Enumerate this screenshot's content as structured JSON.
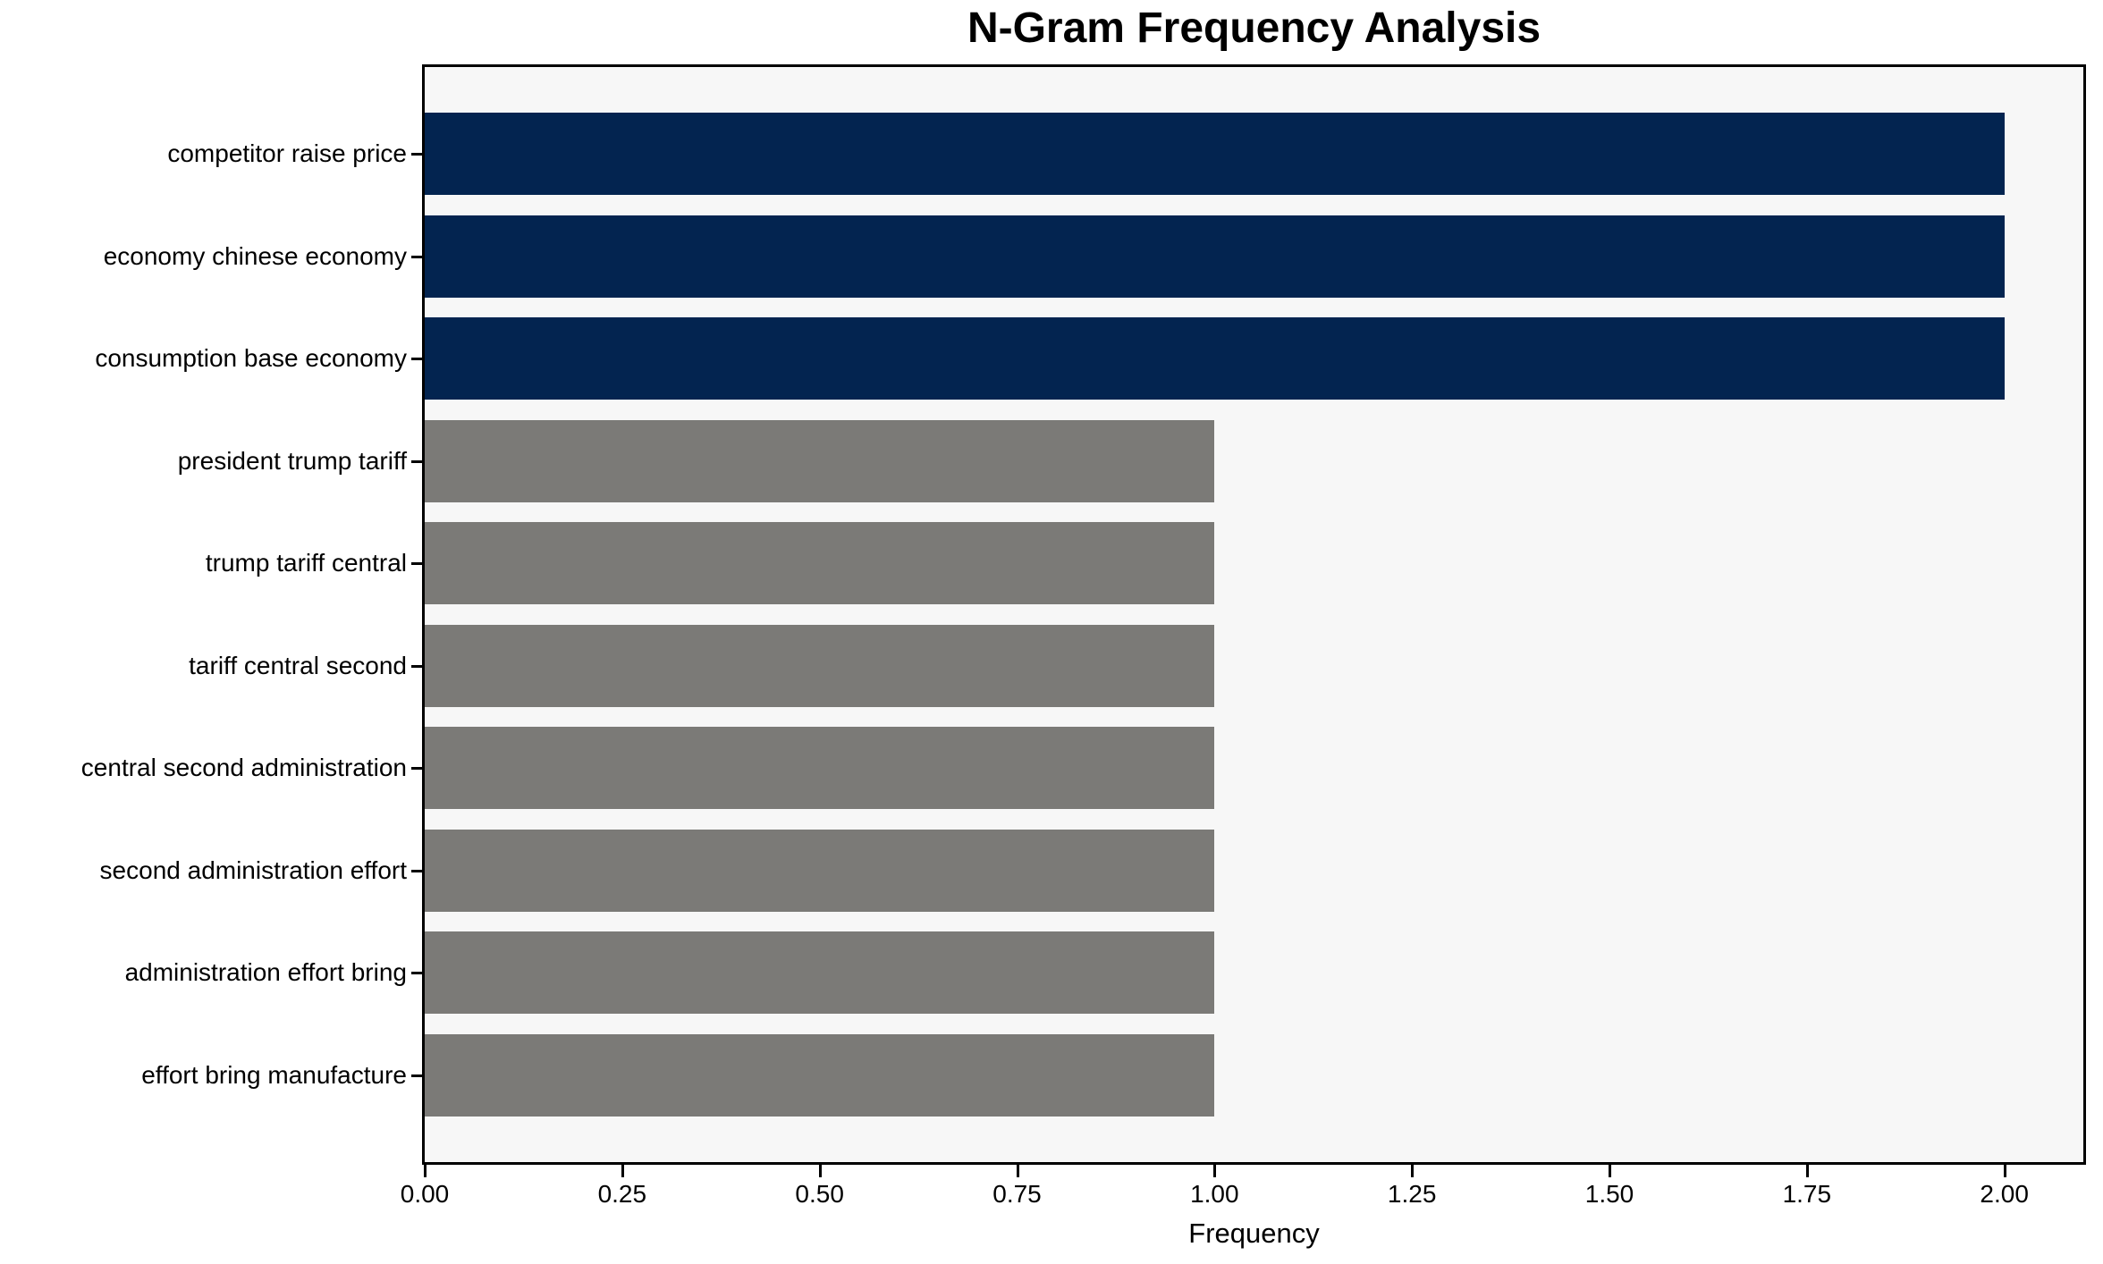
{
  "figure": {
    "background": "#ffffff",
    "plot_background": "#f7f7f7",
    "frame_color": "#000000",
    "text_color": "#000000"
  },
  "chart_data": {
    "type": "bar",
    "orientation": "horizontal",
    "title": "N-Gram Frequency Analysis",
    "xlabel": "Frequency",
    "ylabel": "",
    "categories": [
      "competitor raise price",
      "economy chinese economy",
      "consumption base economy",
      "president trump tariff",
      "trump tariff central",
      "tariff central second",
      "central second administration",
      "second administration effort",
      "administration effort bring",
      "effort bring manufacture"
    ],
    "values": [
      2,
      2,
      2,
      1,
      1,
      1,
      1,
      1,
      1,
      1
    ],
    "bar_colors": [
      "#032450",
      "#032450",
      "#032450",
      "#7b7a77",
      "#7b7a77",
      "#7b7a77",
      "#7b7a77",
      "#7b7a77",
      "#7b7a77",
      "#7b7a77"
    ],
    "highlight_color": "#032450",
    "base_color": "#7b7a77",
    "xlim": [
      0,
      2.1
    ],
    "xticks": {
      "values": [
        0,
        0.25,
        0.5,
        0.75,
        1.0,
        1.25,
        1.5,
        1.75,
        2.0
      ],
      "labels": [
        "0.00",
        "0.25",
        "0.50",
        "0.75",
        "1.00",
        "1.25",
        "1.50",
        "1.75",
        "2.00"
      ]
    },
    "grid": false,
    "legend": null
  }
}
